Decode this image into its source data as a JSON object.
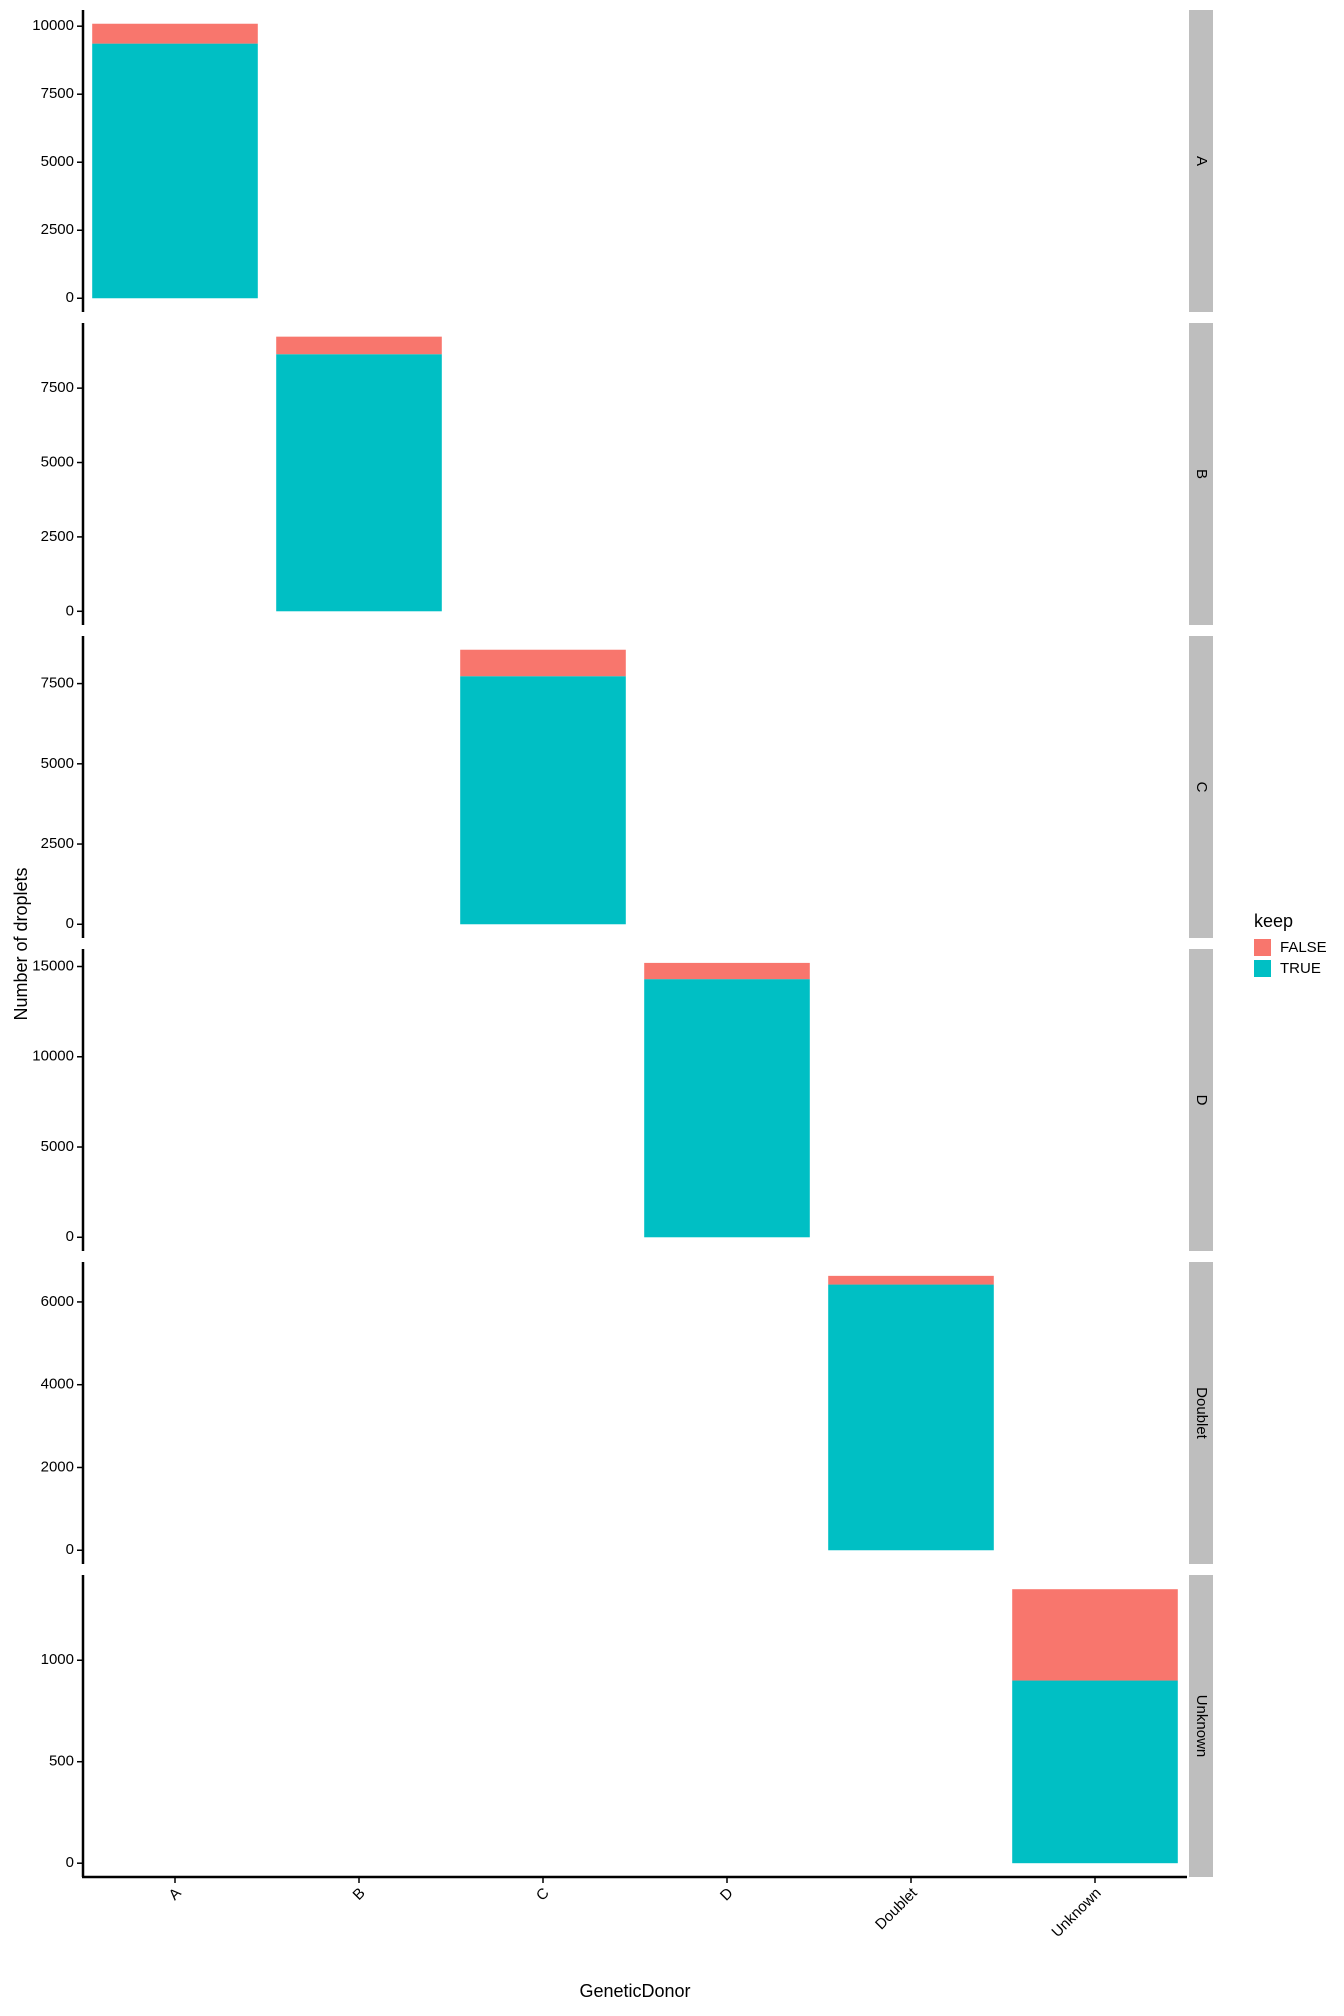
{
  "chart_data": {
    "type": "bar",
    "stacked": true,
    "x_label": "GeneticDonor",
    "y_label": "Number of droplets",
    "categories": [
      "A",
      "B",
      "C",
      "D",
      "Doublet",
      "Unknown"
    ],
    "legend_title": "keep",
    "series": [
      {
        "name": "FALSE",
        "color": "#f8766d"
      },
      {
        "name": "TRUE",
        "color": "#00bfc4"
      }
    ],
    "facets": [
      {
        "label": "A",
        "ylim": [
          -505,
          10595
        ],
        "yticks": [
          0,
          2500,
          5000,
          7500,
          10000
        ],
        "values": [
          [
            730,
            null,
            null,
            null,
            null,
            null
          ],
          [
            9360,
            null,
            null,
            null,
            null,
            null
          ]
        ]
      },
      {
        "label": "B",
        "ylim": [
          -461,
          9689
        ],
        "yticks": [
          0,
          2500,
          5000,
          7500
        ],
        "values": [
          [
            null,
            590,
            null,
            null,
            null,
            null
          ],
          [
            null,
            8640,
            null,
            null,
            null,
            null
          ]
        ]
      },
      {
        "label": "C",
        "ylim": [
          -428,
          8983
        ],
        "yticks": [
          0,
          2500,
          5000,
          7500
        ],
        "values": [
          [
            null,
            null,
            825,
            null,
            null,
            null
          ],
          [
            null,
            null,
            7730,
            null,
            null,
            null
          ]
        ]
      },
      {
        "label": "D",
        "ylim": [
          -760,
          15970
        ],
        "yticks": [
          0,
          5000,
          10000,
          15000
        ],
        "values": [
          [
            null,
            null,
            null,
            900,
            null,
            null
          ],
          [
            null,
            null,
            null,
            14300,
            null,
            null
          ]
        ]
      },
      {
        "label": "Doublet",
        "ylim": [
          -332,
          6965
        ],
        "yticks": [
          0,
          2000,
          4000,
          6000
        ],
        "values": [
          [
            null,
            null,
            null,
            null,
            210,
            null
          ],
          [
            null,
            null,
            null,
            null,
            6420,
            null
          ]
        ]
      },
      {
        "label": "Unknown",
        "ylim": [
          -68,
          1420
        ],
        "yticks": [
          0,
          500,
          1000
        ],
        "values": [
          [
            null,
            null,
            null,
            null,
            null,
            450
          ],
          [
            null,
            null,
            null,
            null,
            null,
            900
          ]
        ]
      }
    ]
  }
}
